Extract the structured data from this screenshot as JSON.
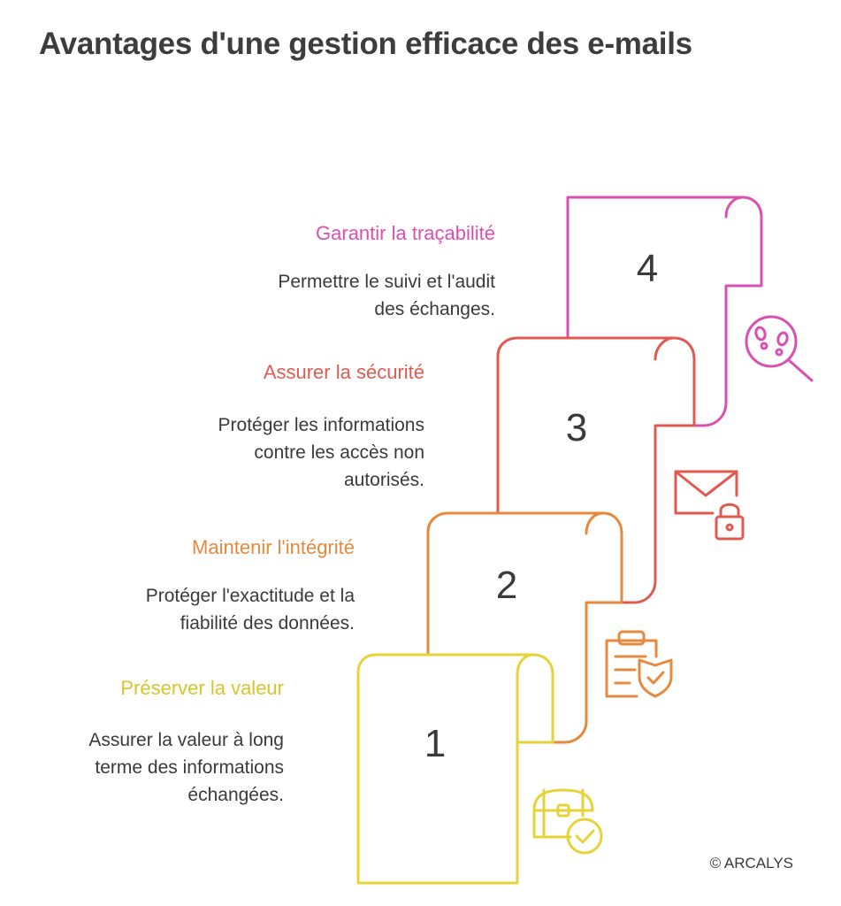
{
  "title": "Avantages d'une gestion efficace des e-mails",
  "steps": [
    {
      "number": "1",
      "title": "Préserver la valeur",
      "description_lines": [
        "Assurer la valeur à long",
        "terme des informations",
        "échangées."
      ],
      "color": "#E6D33A",
      "icon": "treasure-chest-check-icon"
    },
    {
      "number": "2",
      "title": "Maintenir l'intégrité",
      "description_lines": [
        "Protéger l'exactitude et la",
        "fiabilité des données."
      ],
      "color": "#E5893E",
      "icon": "clipboard-shield-icon"
    },
    {
      "number": "3",
      "title": "Assurer la sécurité",
      "description_lines": [
        "Protéger les informations",
        "contre les accès non",
        "autorisés."
      ],
      "color": "#E05A52",
      "icon": "envelope-lock-icon"
    },
    {
      "number": "4",
      "title": "Garantir la traçabilité",
      "description_lines": [
        "Permettre le suivi et l'audit",
        "des échanges."
      ],
      "color": "#D94FB2",
      "icon": "footprints-magnifier-icon"
    }
  ],
  "copyright": "© ARCALYS"
}
